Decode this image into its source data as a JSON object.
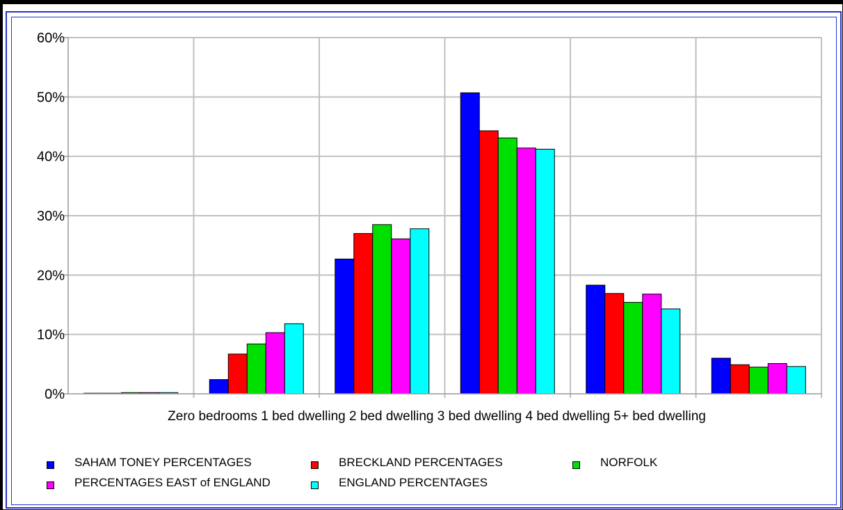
{
  "chart_data": {
    "type": "bar",
    "title": "",
    "xlabel": "",
    "ylabel": "",
    "categories": [
      "Zero bedrooms",
      "1 bed dwelling",
      "2 bed dwelling",
      "3 bed dwelling",
      "4 bed dwelling",
      "5+ bed dwelling"
    ],
    "category_label_line": "Zero bedrooms 1 bed dwelling 2 bed dwelling 3 bed dwelling 4 bed dwelling 5+ bed dwelling",
    "ylim": [
      0,
      60
    ],
    "yticks": [
      0,
      10,
      20,
      30,
      40,
      50,
      60
    ],
    "ytick_labels": [
      "0%",
      "10%",
      "20%",
      "30%",
      "40%",
      "50%",
      "60%"
    ],
    "grid": true,
    "legend_position": "bottom",
    "series": [
      {
        "name": "SAHAM TONEY PERCENTAGES",
        "color": "#0000ff",
        "values": [
          0.1,
          2.4,
          22.7,
          50.7,
          18.3,
          6.0
        ]
      },
      {
        "name": "BRECKLAND PERCENTAGES",
        "color": "#ff0000",
        "values": [
          0.1,
          6.7,
          27.0,
          44.3,
          16.9,
          4.9
        ]
      },
      {
        "name": "NORFOLK",
        "color": "#00e000",
        "values": [
          0.2,
          8.4,
          28.5,
          43.1,
          15.4,
          4.5
        ]
      },
      {
        "name": "PERCENTAGES EAST of ENGLAND",
        "color": "#ff00ff",
        "values": [
          0.2,
          10.3,
          26.1,
          41.4,
          16.8,
          5.1
        ]
      },
      {
        "name": "ENGLAND PERCENTAGES",
        "color": "#00ffff",
        "values": [
          0.2,
          11.8,
          27.8,
          41.2,
          14.3,
          4.6
        ]
      }
    ]
  }
}
